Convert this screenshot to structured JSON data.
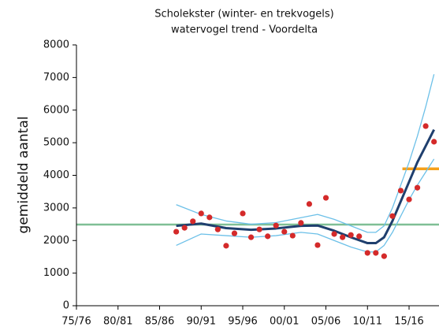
{
  "chart_data": {
    "type": "line",
    "title": "Scholekster (winter- en trekvogels)",
    "subtitle": "watervogel trend - Voordelta",
    "y_label": "gemiddeld aantal",
    "xlim": [
      1975,
      2018.6
    ],
    "xticks": [
      {
        "value": 1975,
        "label": "75/76"
      },
      {
        "value": 1980,
        "label": "80/81"
      },
      {
        "value": 1985,
        "label": "85/86"
      },
      {
        "value": 1990,
        "label": "90/91"
      },
      {
        "value": 1995,
        "label": "95/96"
      },
      {
        "value": 2000,
        "label": "00/01"
      },
      {
        "value": 2005,
        "label": "05/06"
      },
      {
        "value": 2010,
        "label": "10/11"
      },
      {
        "value": 2015,
        "label": "15/16"
      }
    ],
    "ylim": [
      0,
      8000
    ],
    "yticks": [
      0,
      1000,
      2000,
      3000,
      4000,
      5000,
      6000,
      7000,
      8000
    ],
    "reference_lines": [
      {
        "value": 2490,
        "color": "#7fbf95",
        "x": [
          1975,
          2018.6
        ]
      },
      {
        "value": 4200,
        "color": "#f5a01a",
        "x": [
          2014.2,
          2018.6
        ]
      }
    ],
    "series": [
      {
        "style": "band",
        "color": "#6cc0e8",
        "x": [
          1987,
          1990,
          1993,
          1996,
          1999,
          2002,
          2004,
          2006,
          2008,
          2010,
          2011,
          2012,
          2013,
          2014,
          2015,
          2016,
          2017,
          2018
        ],
        "values": [
          3100,
          2800,
          2600,
          2500,
          2550,
          2700,
          2800,
          2650,
          2450,
          2250,
          2250,
          2450,
          3000,
          3700,
          4400,
          5200,
          6100,
          7100
        ]
      },
      {
        "style": "band",
        "color": "#6cc0e8",
        "x": [
          1987,
          1990,
          1993,
          1996,
          1999,
          2002,
          2004,
          2006,
          2008,
          2010,
          2011,
          2012,
          2013,
          2014,
          2015,
          2016,
          2017,
          2018
        ],
        "values": [
          1850,
          2200,
          2150,
          2100,
          2150,
          2250,
          2200,
          2000,
          1800,
          1650,
          1650,
          1850,
          2250,
          2750,
          3250,
          3700,
          4100,
          4500
        ]
      },
      {
        "style": "trend",
        "color": "#1f3f6e",
        "x": [
          1987,
          1990,
          1993,
          1996,
          1999,
          2002,
          2004,
          2006,
          2008,
          2010,
          2011,
          2012,
          2013,
          2014,
          2015,
          2016,
          2017,
          2018
        ],
        "values": [
          2450,
          2520,
          2380,
          2330,
          2370,
          2450,
          2460,
          2300,
          2100,
          1920,
          1920,
          2100,
          2600,
          3200,
          3800,
          4400,
          4900,
          5400
        ]
      },
      {
        "style": "points",
        "color": "#d42a2a",
        "x": [
          1987,
          1988,
          1989,
          1990,
          1991,
          1992,
          1993,
          1994,
          1995,
          1996,
          1997,
          1998,
          1999,
          2000,
          2001,
          2002,
          2003,
          2004,
          2005,
          2006,
          2007,
          2008,
          2009,
          2010,
          2011,
          2012,
          2013,
          2014,
          2015,
          2016,
          2017,
          2018
        ],
        "values": [
          2270,
          2390,
          2590,
          2830,
          2710,
          2340,
          1840,
          2220,
          2830,
          2100,
          2340,
          2130,
          2460,
          2270,
          2150,
          2540,
          3120,
          1860,
          3310,
          2200,
          2100,
          2170,
          2130,
          1620,
          1620,
          1520,
          2750,
          3530,
          3260,
          3620,
          5510,
          5030
        ]
      }
    ]
  }
}
